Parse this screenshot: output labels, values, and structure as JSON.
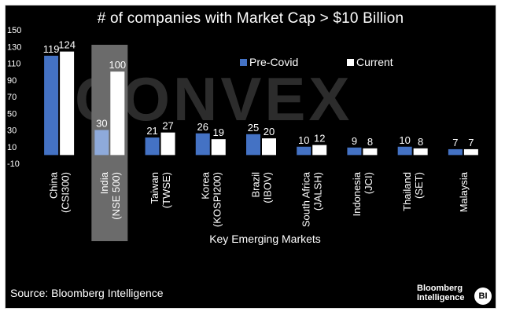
{
  "chart_data": {
    "type": "bar",
    "title": "# of companies with Market Cap > $10 Billion",
    "xlabel": "Key Emerging Markets",
    "ylabel": "",
    "ylim": [
      -10,
      150
    ],
    "yticks": [
      -10,
      10,
      30,
      50,
      70,
      90,
      110,
      130,
      150
    ],
    "categories": [
      [
        "China",
        "(CSI300)"
      ],
      [
        "India",
        "(NSE 500)"
      ],
      [
        "Taiwan",
        "(TWSE)"
      ],
      [
        "Korea",
        "(KOSPI200)"
      ],
      [
        "Brazil",
        "(IBOV)"
      ],
      [
        "South Africa",
        "(JALSH)"
      ],
      [
        "Indonesia",
        "(JCI)"
      ],
      [
        "Thailand",
        "(SET)"
      ],
      [
        "Malaysia"
      ]
    ],
    "series": [
      {
        "name": "Pre-Covid",
        "color": "#4472c4",
        "values": [
          119,
          30,
          21,
          26,
          25,
          10,
          9,
          10,
          7
        ]
      },
      {
        "name": "Current",
        "color": "#ffffff",
        "values": [
          124,
          100,
          27,
          19,
          20,
          12,
          8,
          8,
          7
        ]
      }
    ],
    "highlight_category_index": 1,
    "highlight_color": "#6b6b6b",
    "legend_position": "top-right",
    "grid": false
  },
  "source": "Source: Bloomberg Intelligence",
  "brand": {
    "line1": "Bloomberg",
    "line2": "Intelligence",
    "badge": "BI"
  },
  "watermark": "CONVEX"
}
